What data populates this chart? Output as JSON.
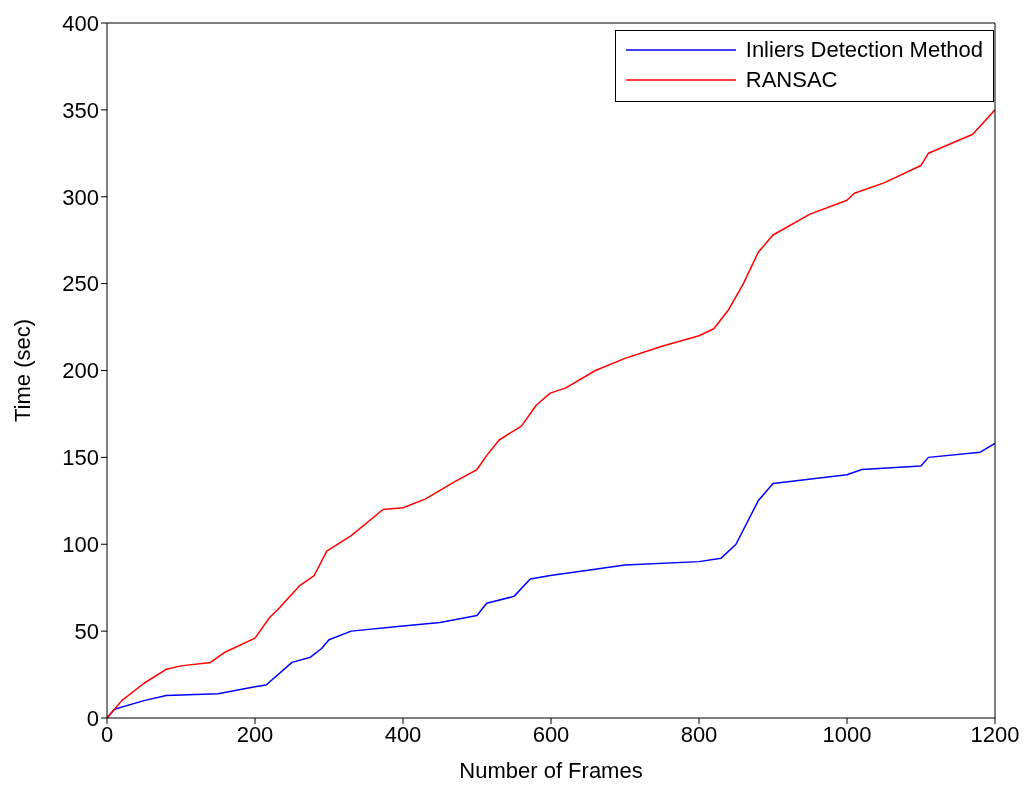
{
  "chart_data": {
    "type": "line",
    "xlabel": "Number of Frames",
    "ylabel": "Time (sec)",
    "xlim": [
      0,
      1200
    ],
    "xticks": [
      0,
      200,
      400,
      600,
      800,
      1000,
      1200
    ],
    "ylim": [
      0,
      400
    ],
    "yticks": [
      0,
      50,
      100,
      150,
      200,
      250,
      300,
      350,
      400
    ],
    "grid": false,
    "legend": "top right",
    "marker": "none",
    "line_style": "solid",
    "series": [
      {
        "name": "Inliers Detection Method",
        "color": "#0000ff",
        "x": [
          0,
          10,
          50,
          80,
          150,
          200,
          215,
          250,
          275,
          290,
          300,
          330,
          400,
          450,
          500,
          513,
          550,
          572,
          599,
          650,
          700,
          800,
          830,
          850,
          880,
          900,
          1000,
          1020,
          1100,
          1110,
          1180,
          1200
        ],
        "values": [
          0,
          5,
          10,
          13,
          14,
          18,
          19,
          32,
          35,
          40,
          45,
          50,
          53,
          55,
          59,
          66,
          70,
          80,
          82,
          85,
          88,
          90,
          92,
          100,
          125,
          135,
          140,
          143,
          145,
          150,
          153,
          158
        ]
      },
      {
        "name": "RANSAC",
        "color": "#ff0000",
        "x": [
          0,
          20,
          50,
          80,
          100,
          140,
          160,
          200,
          220,
          230,
          260,
          280,
          297,
          330,
          373,
          400,
          430,
          470,
          500,
          513,
          530,
          560,
          580,
          599,
          620,
          660,
          700,
          750,
          800,
          820,
          840,
          860,
          880,
          900,
          950,
          1000,
          1010,
          1050,
          1100,
          1110,
          1170,
          1200
        ],
        "values": [
          0,
          10,
          20,
          28,
          30,
          32,
          38,
          46,
          58,
          62,
          76,
          82,
          96,
          105,
          120,
          121,
          126,
          136,
          143,
          151,
          160,
          168,
          180,
          187,
          190,
          200,
          207,
          214,
          220,
          224,
          235,
          250,
          268,
          278,
          290,
          298,
          302,
          308,
          318,
          325,
          336,
          350
        ]
      }
    ]
  }
}
